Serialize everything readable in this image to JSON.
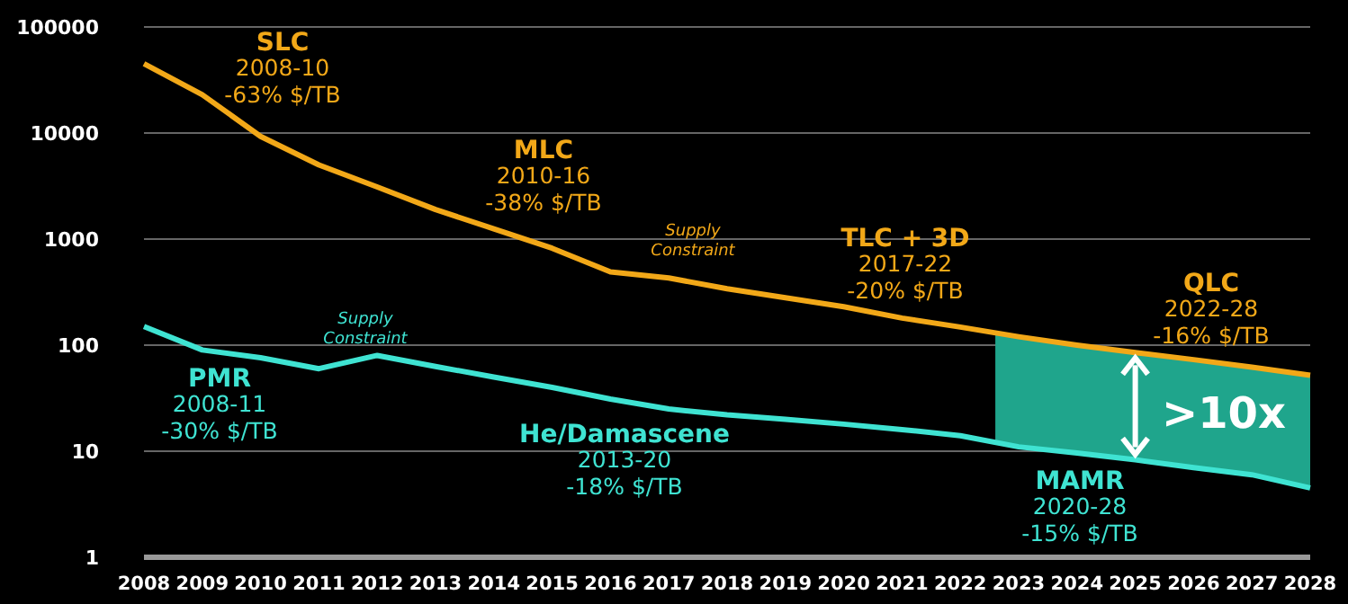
{
  "chart_data": {
    "type": "line",
    "log": "y",
    "grid": "y",
    "xlim": [
      2008,
      2028
    ],
    "xticks": [
      2008,
      2009,
      2010,
      2011,
      2012,
      2013,
      2014,
      2015,
      2016,
      2017,
      2018,
      2019,
      2020,
      2021,
      2022,
      2023,
      2024,
      2025,
      2026,
      2027,
      2028
    ],
    "ylim": [
      1,
      100000
    ],
    "yticks": [
      1,
      10,
      100,
      1000,
      10000,
      100000
    ],
    "x": [
      2008,
      2009,
      2010,
      2011,
      2012,
      2013,
      2014,
      2015,
      2016,
      2017,
      2018,
      2019,
      2020,
      2021,
      2022,
      2023,
      2024,
      2025,
      2026,
      2027,
      2028
    ],
    "series": [
      {
        "color": "#f2a818",
        "values": [
          45000,
          23000,
          9300,
          5000,
          3100,
          1900,
          1250,
          820,
          490,
          430,
          340,
          280,
          230,
          180,
          148,
          120,
          100,
          85,
          73,
          62,
          52
        ]
      },
      {
        "color": "#3fe3d2",
        "values": [
          150,
          90,
          76,
          60,
          80,
          63,
          50,
          40,
          31,
          25,
          22,
          20,
          18,
          16,
          14,
          11,
          9.6,
          8.3,
          7,
          6,
          4.5
        ]
      }
    ],
    "annotations": [
      "SLC\n2008-10\n-63% $/TB",
      "MLC\n2010-16\n-38% $/TB",
      "Supply\nConstraint",
      "TLC + 3D\n2017-22\n-20% $/TB",
      "QLC\n2022-28\n-16% $/TB",
      "Supply\nConstraint",
      "PMR\n2008-11\n-30% $/TB",
      "He/Damascene\n2013-20\n-18% $/TB",
      "MAMR\n2020-28\n-15% $/TB",
      ">10x"
    ]
  }
}
